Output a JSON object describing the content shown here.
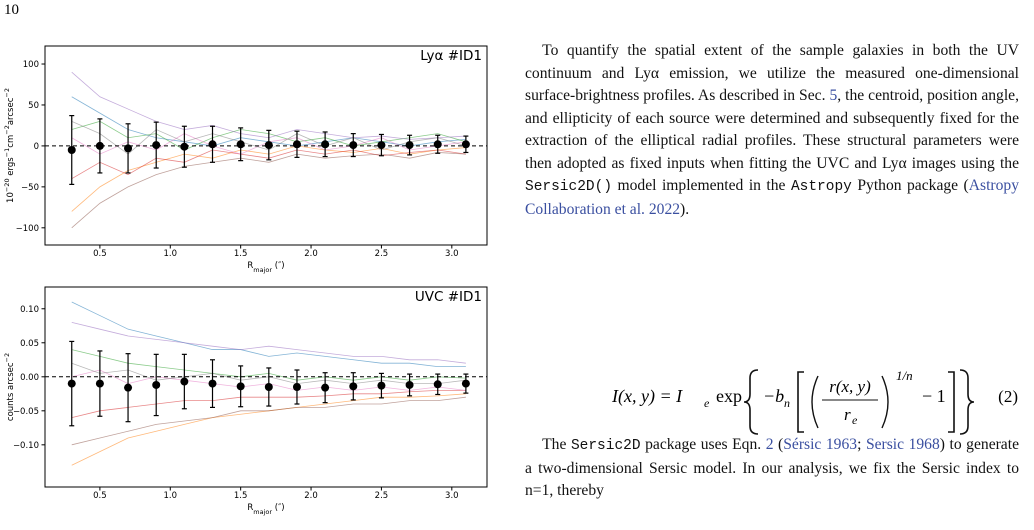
{
  "page_number": "10",
  "chart_data": [
    {
      "type": "line",
      "label": "Lyα  #ID1",
      "x": [
        0.3,
        0.5,
        0.7,
        0.9,
        1.1,
        1.3,
        1.5,
        1.7,
        1.9,
        2.1,
        2.3,
        2.5,
        2.7,
        2.9,
        3.1
      ],
      "series": [
        {
          "color": "#1f77b4",
          "values": [
            60,
            40,
            20,
            10,
            5,
            0,
            10,
            5,
            0,
            5,
            10,
            5,
            0,
            5,
            8
          ]
        },
        {
          "color": "#ff7f0e",
          "values": [
            -80,
            -50,
            -30,
            -20,
            -10,
            -15,
            -5,
            -10,
            0,
            -5,
            -8,
            -3,
            -10,
            -5,
            -2
          ]
        },
        {
          "color": "#2ca02c",
          "values": [
            20,
            30,
            10,
            15,
            -5,
            10,
            20,
            15,
            5,
            10,
            0,
            5,
            10,
            15,
            5
          ]
        },
        {
          "color": "#d62728",
          "values": [
            -40,
            -20,
            -35,
            -15,
            -20,
            -5,
            -10,
            -15,
            -5,
            -10,
            -5,
            -12,
            -8,
            -5,
            -10
          ]
        },
        {
          "color": "#9467bd",
          "values": [
            90,
            60,
            45,
            30,
            20,
            25,
            15,
            10,
            20,
            15,
            10,
            12,
            8,
            10,
            12
          ]
        },
        {
          "color": "#8c564b",
          "values": [
            -100,
            -70,
            -50,
            -35,
            -25,
            -20,
            -15,
            -20,
            -10,
            -15,
            -12,
            -10,
            -15,
            -8,
            -10
          ]
        },
        {
          "color": "#e377c2",
          "values": [
            10,
            -10,
            5,
            -5,
            15,
            0,
            -10,
            5,
            10,
            -5,
            0,
            10,
            -5,
            0,
            5
          ]
        },
        {
          "color": "#7f7f7f",
          "values": [
            30,
            15,
            -10,
            20,
            5,
            15,
            5,
            -5,
            15,
            0,
            10,
            -5,
            5,
            10,
            0
          ]
        }
      ],
      "mean": {
        "color": "#000000",
        "values": [
          -5,
          0,
          -3,
          1,
          -1,
          2,
          2,
          1,
          2,
          2,
          1,
          1,
          1,
          2,
          2
        ],
        "errors": [
          42,
          33,
          30,
          28,
          25,
          22,
          20,
          18,
          16,
          15,
          14,
          13,
          12,
          11,
          10
        ]
      },
      "hline": 0,
      "xlim": [
        0.11,
        3.25
      ],
      "ylim": [
        -121,
        122
      ],
      "xticks": [
        0.5,
        {
          "value": 1,
          "label": "1.0"
        },
        1.5,
        {
          "value": 2,
          "label": "2.0"
        },
        2.5,
        {
          "value": 3,
          "label": "3.0"
        }
      ],
      "yticks": [
        {
          "value": -100,
          "label": "−100"
        },
        {
          "value": -50,
          "label": "−50"
        },
        0,
        50,
        100
      ],
      "xlabel": [
        {
          "text": "R"
        },
        {
          "text": "major",
          "sub": true
        },
        {
          "text": " (″)"
        }
      ],
      "ylabel": [
        {
          "text": "10"
        },
        {
          "text": "−20",
          "sup": true
        },
        {
          "text": " ergs"
        },
        {
          "text": "−1",
          "sup": true
        },
        {
          "text": "cm"
        },
        {
          "text": "−2",
          "sup": true
        },
        {
          "text": "arcsec"
        },
        {
          "text": "−2",
          "sup": true
        }
      ]
    },
    {
      "type": "line",
      "label": "UVC #ID1",
      "x": [
        0.3,
        0.5,
        0.7,
        0.9,
        1.1,
        1.3,
        1.5,
        1.7,
        1.9,
        2.1,
        2.3,
        2.5,
        2.7,
        2.9,
        3.1
      ],
      "series": [
        {
          "color": "#1f77b4",
          "values": [
            0.11,
            0.09,
            0.07,
            0.06,
            0.05,
            0.04,
            0.04,
            0.03,
            0.035,
            0.03,
            0.025,
            0.02,
            0.02,
            0.015,
            0.015
          ]
        },
        {
          "color": "#ff7f0e",
          "values": [
            -0.13,
            -0.11,
            -0.09,
            -0.08,
            -0.07,
            -0.06,
            -0.055,
            -0.05,
            -0.045,
            -0.04,
            -0.035,
            -0.03,
            -0.03,
            -0.028,
            -0.025
          ]
        },
        {
          "color": "#2ca02c",
          "values": [
            0.04,
            0.03,
            0.02,
            0.015,
            0.01,
            0.005,
            0,
            0.005,
            -0.005,
            0,
            -0.005,
            0,
            -0.005,
            0,
            -0.002
          ]
        },
        {
          "color": "#d62728",
          "values": [
            -0.06,
            -0.05,
            -0.045,
            -0.04,
            -0.035,
            -0.035,
            -0.03,
            -0.03,
            -0.03,
            -0.028,
            -0.025,
            -0.025,
            -0.022,
            -0.02,
            -0.02
          ]
        },
        {
          "color": "#9467bd",
          "values": [
            0.08,
            0.07,
            0.06,
            0.055,
            0.05,
            0.045,
            0.04,
            0.045,
            0.04,
            0.035,
            0.03,
            0.03,
            0.025,
            0.025,
            0.02
          ]
        },
        {
          "color": "#8c564b",
          "values": [
            -0.1,
            -0.09,
            -0.08,
            -0.07,
            -0.065,
            -0.06,
            -0.05,
            -0.05,
            -0.045,
            -0.045,
            -0.04,
            -0.04,
            -0.035,
            -0.035,
            -0.03
          ]
        },
        {
          "color": "#e377c2",
          "values": [
            0,
            0.01,
            -0.01,
            0,
            -0.005,
            -0.01,
            -0.015,
            -0.01,
            -0.02,
            -0.015,
            -0.02,
            -0.015,
            -0.02,
            -0.015,
            -0.02
          ]
        },
        {
          "color": "#7f7f7f",
          "values": [
            0.02,
            0.005,
            0.01,
            -0.005,
            0,
            0.005,
            -0.005,
            0,
            -0.01,
            -0.005,
            -0.01,
            -0.005,
            -0.01,
            -0.01,
            -0.005
          ]
        }
      ],
      "mean": {
        "color": "#000000",
        "values": [
          -0.01,
          -0.01,
          -0.016,
          -0.012,
          -0.007,
          -0.01,
          -0.014,
          -0.015,
          -0.015,
          -0.016,
          -0.014,
          -0.013,
          -0.012,
          -0.011,
          -0.01
        ],
        "errors": [
          0.062,
          0.048,
          0.05,
          0.045,
          0.04,
          0.035,
          0.03,
          0.028,
          0.025,
          0.022,
          0.02,
          0.018,
          0.016,
          0.015,
          0.014
        ]
      },
      "hline": 0,
      "xlim": [
        0.11,
        3.25
      ],
      "ylim": [
        -0.162,
        0.132
      ],
      "xticks": [
        0.5,
        {
          "value": 1,
          "label": "1.0"
        },
        1.5,
        {
          "value": 2,
          "label": "2.0"
        },
        2.5,
        {
          "value": 3,
          "label": "3.0"
        }
      ],
      "yticks": [
        {
          "value": -0.1,
          "label": "−0.10"
        },
        {
          "value": -0.05,
          "label": "−0.05"
        },
        {
          "value": 0,
          "label": "0.00"
        },
        {
          "value": 0.05,
          "label": "0.05"
        },
        {
          "value": 0.1,
          "label": "0.10"
        }
      ],
      "xlabel": [
        {
          "text": "R"
        },
        {
          "text": "major",
          "sub": true
        },
        {
          "text": " (″)"
        }
      ],
      "ylabel": [
        {
          "text": "counts arcsec"
        },
        {
          "text": "−2",
          "sup": true
        }
      ]
    }
  ],
  "paragraphs": [
    [
      {
        "text": "To quantify the spatial extent of the sample galaxies in both the UV continuum and Lyα emission, we utilize the measured one-dimensional surface-brightness profiles. As described in Sec. "
      },
      {
        "text": "5",
        "style": "link"
      },
      {
        "text": ", the centroid, position angle, and ellipticity of each source were determined and subsequently fixed for the extraction of the elliptical radial profiles. These structural parameters were then adopted as fixed inputs when fitting the UVC and Lyα images using the "
      },
      {
        "text": "Sersic2D()",
        "style": "code"
      },
      {
        "text": " model implemented in the "
      },
      {
        "text": "Astropy",
        "style": "code"
      },
      {
        "text": " Python package ("
      },
      {
        "text": "Astropy Collaboration et al. 2022",
        "style": "link"
      },
      {
        "text": ")."
      }
    ],
    [
      {
        "text": "The "
      },
      {
        "text": "Sersic2D",
        "style": "code"
      },
      {
        "text": " package uses Eqn. "
      },
      {
        "text": "2",
        "style": "link"
      },
      {
        "text": " ("
      },
      {
        "text": "Sérsic 1963",
        "style": "link"
      },
      {
        "text": "; "
      },
      {
        "text": "Sersic 1968",
        "style": "link"
      },
      {
        "text": ") to generate a two-dimensional Sersic model. In our analysis, we fix the Sersic index to n=1, thereby"
      }
    ]
  ],
  "equation": {
    "lhs": "I(x, y) = I",
    "lhs_sub": "e",
    "exp": "exp",
    "b": "−b",
    "b_sub": "n",
    "num": "r(x, y)",
    "den": "r",
    "den_sub": "e",
    "power": "1/n",
    "minus_one": "− 1",
    "number": "(2)"
  }
}
